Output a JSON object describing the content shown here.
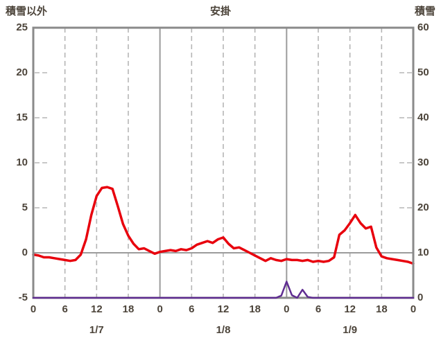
{
  "left_axis_title": "積雪以外",
  "chart_title": "安掛",
  "right_axis_title": "積雪",
  "colors": {
    "temp_line": "#e8000d",
    "snow_line": "#5f2d91",
    "frame": "#8a8a8a",
    "major_grid": "#9b9b9b",
    "minor_grid": "#b5b5b5",
    "zero_line": "#9b9b9b",
    "text": "#4c443a"
  },
  "chart_data": {
    "type": "line",
    "title": "安掛",
    "left_axis": {
      "label": "積雪以外",
      "min": -5,
      "max": 25,
      "ticks": [
        25,
        20,
        15,
        10,
        5,
        0,
        -5
      ]
    },
    "right_axis": {
      "label": "積雪",
      "min": 0,
      "max": 60,
      "ticks": [
        60,
        50,
        40,
        30,
        20,
        10,
        0
      ]
    },
    "x_axis": {
      "hours_total": 72,
      "tick_hours": [
        0,
        6,
        12,
        18,
        24,
        30,
        36,
        42,
        48,
        54,
        60,
        66,
        72
      ],
      "tick_labels": [
        "0",
        "6",
        "12",
        "18",
        "0",
        "6",
        "12",
        "18",
        "0",
        "6",
        "12",
        "18",
        "0"
      ],
      "minor_grid_hours": [
        6,
        12,
        18,
        30,
        36,
        42,
        54,
        60,
        66
      ],
      "major_grid_hours": [
        24,
        48
      ],
      "day_labels": [
        {
          "hour": 12,
          "label": "1/7"
        },
        {
          "hour": 36,
          "label": "1/8"
        },
        {
          "hour": 60,
          "label": "1/9"
        }
      ]
    },
    "zero_reference_left": 0,
    "series": [
      {
        "name": "積雪以外",
        "axis": "left",
        "color": "#e8000d",
        "width": 3.5,
        "values": [
          -0.2,
          -0.3,
          -0.5,
          -0.5,
          -0.6,
          -0.7,
          -0.8,
          -0.9,
          -0.8,
          -0.2,
          1.5,
          4.2,
          6.3,
          7.2,
          7.3,
          7.1,
          5.2,
          3.2,
          1.9,
          1.0,
          0.4,
          0.5,
          0.2,
          -0.1,
          0.1,
          0.2,
          0.3,
          0.2,
          0.4,
          0.3,
          0.5,
          0.9,
          1.1,
          1.3,
          1.1,
          1.5,
          1.7,
          1.0,
          0.5,
          0.6,
          0.3,
          0.0,
          -0.3,
          -0.6,
          -0.9,
          -0.6,
          -0.8,
          -0.9,
          -0.7,
          -0.8,
          -0.8,
          -0.9,
          -0.8,
          -1.0,
          -0.9,
          -1.0,
          -0.9,
          -0.5,
          2.0,
          2.5,
          3.3,
          4.2,
          3.3,
          2.7,
          2.9,
          0.6,
          -0.4,
          -0.6,
          -0.7,
          -0.8,
          -0.9,
          -1.0,
          -1.2
        ]
      },
      {
        "name": "積雪",
        "axis": "right",
        "color": "#5f2d91",
        "width": 2.5,
        "values": [
          0,
          0,
          0,
          0,
          0,
          0,
          0,
          0,
          0,
          0,
          0,
          0,
          0,
          0,
          0,
          0,
          0,
          0,
          0,
          0,
          0,
          0,
          0,
          0,
          0,
          0,
          0,
          0,
          0,
          0,
          0,
          0,
          0,
          0,
          0,
          0,
          0,
          0,
          0,
          0,
          0,
          0,
          0,
          0,
          0,
          0,
          0,
          0.5,
          3.6,
          0.6,
          0,
          1.8,
          0.2,
          0,
          0,
          0,
          0,
          0,
          0,
          0,
          0,
          0,
          0,
          0,
          0,
          0,
          0,
          0,
          0,
          0,
          0,
          0,
          0
        ]
      }
    ]
  }
}
